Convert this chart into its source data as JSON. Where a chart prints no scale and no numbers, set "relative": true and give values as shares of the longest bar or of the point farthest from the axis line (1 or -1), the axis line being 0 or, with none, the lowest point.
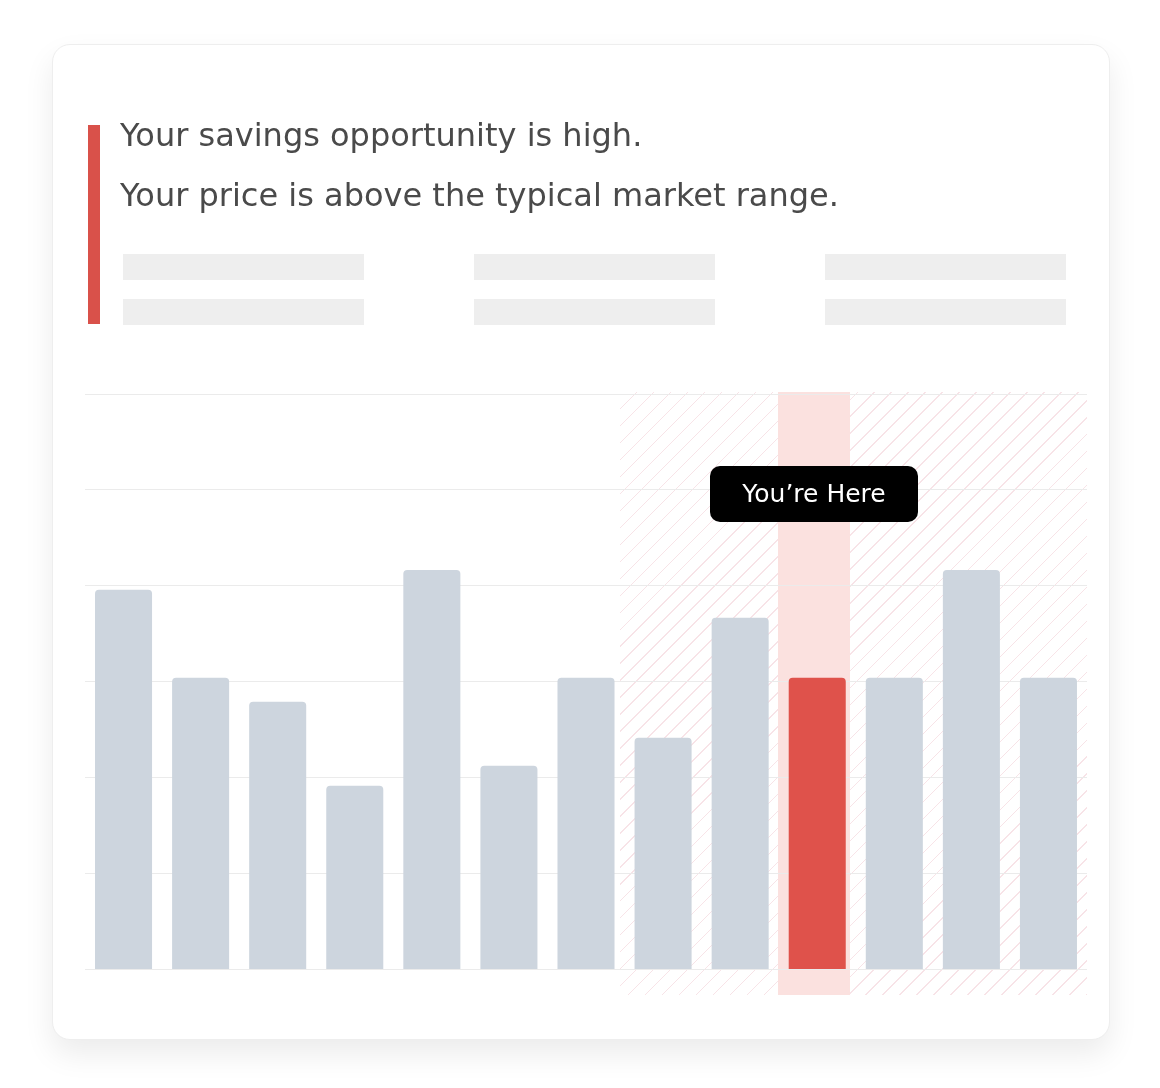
{
  "chart_data": {
    "type": "bar",
    "title": "Your savings opportunity is high.",
    "subtitle": "Your price is above the typical market range.",
    "categories": [
      null,
      null,
      null,
      null,
      null,
      null,
      null,
      null,
      null,
      null,
      null,
      null,
      null
    ],
    "values": [
      0.95,
      0.73,
      0.67,
      0.46,
      1,
      0.51,
      0.73,
      0.58,
      0.88,
      0.73,
      0.73,
      1,
      0.73
    ],
    "colors": [
      "#cdd5de",
      "#cdd5de",
      "#cdd5de",
      "#cdd5de",
      "#cdd5de",
      "#cdd5de",
      "#cdd5de",
      "#cdd5de",
      "#cdd5de",
      "#df524b",
      "#cdd5de",
      "#cdd5de",
      "#cdd5de"
    ],
    "relative": true,
    "grid": "y",
    "legend": false,
    "annotations": [
      "You’re Here"
    ]
  }
}
